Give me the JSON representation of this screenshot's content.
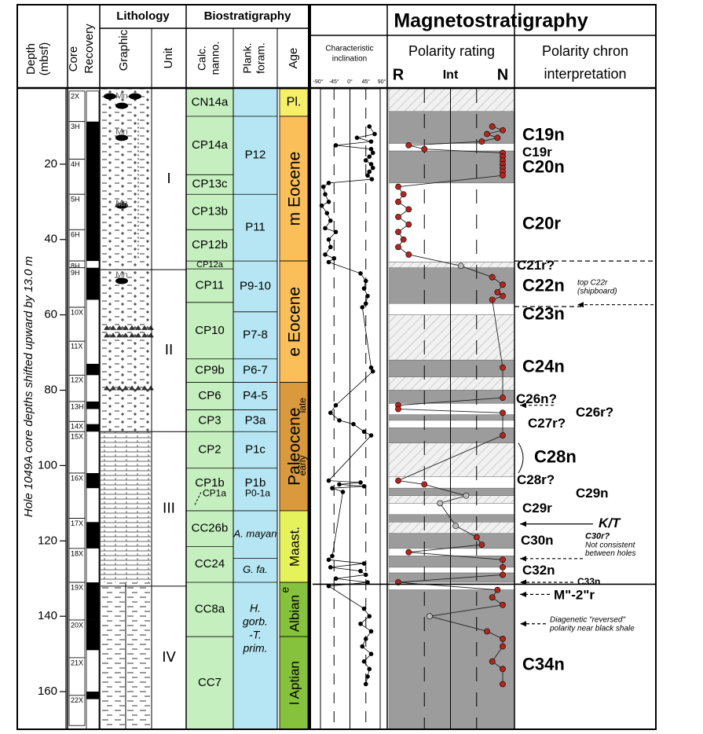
{
  "figure": {
    "side_label": "Hole 1049A core depths shifted upward by 13.0 m",
    "headers": {
      "depth_1": "Depth",
      "depth_2": "(mbsf)",
      "core": "Core",
      "recovery": "Recovery",
      "lithology": "Lithology",
      "graphic": "Graphic",
      "unit": "Unit",
      "biostratigraphy": "Biostratigraphy",
      "calc_1": "Calc.",
      "calc_2": "nanno.",
      "plank_1": "Plank.",
      "plank_2": "foram.",
      "age": "Age",
      "magnetostratigraphy": "Magnetostratigraphy",
      "incl_1": "Characteristic",
      "incl_2": "inclination",
      "polarity_rating": "Polarity rating",
      "chron_1": "Polarity chron",
      "chron_2": "interpretation"
    },
    "depth_ticks": [
      20,
      40,
      60,
      80,
      100,
      120,
      140,
      160
    ],
    "depth_range": [
      0,
      170
    ],
    "inclination_ticks": [
      {
        "value": -90,
        "label": "-90°"
      },
      {
        "value": -45,
        "label": "-45°"
      },
      {
        "value": 0,
        "label": "0°"
      },
      {
        "value": 45,
        "label": "45°"
      },
      {
        "value": 90,
        "label": "90°"
      }
    ],
    "rating_ticks": [
      {
        "value": -1,
        "label": "R"
      },
      {
        "value": 0,
        "label": "Int"
      },
      {
        "value": 1,
        "label": "N"
      }
    ],
    "cores": [
      {
        "label": "2X",
        "top": 0.6,
        "bottom": 8.7
      },
      {
        "label": "3H",
        "top": 8.7,
        "bottom": 18.7
      },
      {
        "label": "4H",
        "top": 18.7,
        "bottom": 28
      },
      {
        "label": "5H",
        "top": 28,
        "bottom": 37.4
      },
      {
        "label": "6H",
        "top": 37.4,
        "bottom": 45.7
      },
      {
        "label": "8H",
        "top": 45.7,
        "bottom": 47.5
      },
      {
        "label": "9H",
        "top": 47.5,
        "bottom": 58
      },
      {
        "label": "10X",
        "top": 58,
        "bottom": 67
      },
      {
        "label": "11X",
        "top": 67,
        "bottom": 76
      },
      {
        "label": "12X",
        "top": 76,
        "bottom": 83
      },
      {
        "label": "13H",
        "top": 83,
        "bottom": 88.3
      },
      {
        "label": "14X",
        "top": 88.3,
        "bottom": 91
      },
      {
        "label": "15X",
        "top": 91,
        "bottom": 102
      },
      {
        "label": "16X",
        "top": 102,
        "bottom": 114
      },
      {
        "label": "17X",
        "top": 114,
        "bottom": 122
      },
      {
        "label": "18X",
        "top": 122,
        "bottom": 131
      },
      {
        "label": "19X",
        "top": 131,
        "bottom": 141
      },
      {
        "label": "20X",
        "top": 141,
        "bottom": 151
      },
      {
        "label": "21X",
        "top": 151,
        "bottom": 161
      },
      {
        "label": "22X",
        "top": 161,
        "bottom": 169
      }
    ],
    "recovered": [
      [
        8.7,
        45.7
      ],
      [
        47.5,
        56
      ],
      [
        73,
        76
      ],
      [
        83,
        85
      ],
      [
        89,
        91
      ],
      [
        102,
        106
      ],
      [
        115,
        122
      ],
      [
        131,
        141
      ],
      [
        141,
        149
      ],
      [
        160,
        162
      ]
    ],
    "units": [
      {
        "label": "I",
        "top": 0,
        "bottom": 48
      },
      {
        "label": "II",
        "top": 48,
        "bottom": 91
      },
      {
        "label": "III",
        "top": 91,
        "bottom": 132
      },
      {
        "label": "IV",
        "top": 132,
        "bottom": 170
      }
    ],
    "mn_labels": [
      {
        "label": "Mn",
        "depth": 2
      },
      {
        "label": "Mn",
        "depth": 11.5
      },
      {
        "label": "Mn",
        "depth": 30.5
      },
      {
        "label": "Mn",
        "depth": 49.5
      }
    ],
    "nanno_zones": [
      {
        "label": "CN14a",
        "top": 0,
        "bottom": 7.3
      },
      {
        "label": "CP14a",
        "top": 7.3,
        "bottom": 22.8
      },
      {
        "label": "CP13c",
        "top": 22.8,
        "bottom": 28
      },
      {
        "label": "CP13b",
        "top": 28,
        "bottom": 37.4
      },
      {
        "label": "CP12b",
        "top": 37.4,
        "bottom": 45.7
      },
      {
        "label": "CP12a",
        "top": 45.7,
        "bottom": 47.8
      },
      {
        "label": "CP11",
        "top": 47.8,
        "bottom": 56.7
      },
      {
        "label": "CP10",
        "top": 56.7,
        "bottom": 71.7
      },
      {
        "label": "CP9b",
        "top": 71.7,
        "bottom": 77.9
      },
      {
        "label": "CP6",
        "top": 77.9,
        "bottom": 85.2
      },
      {
        "label": "CP3",
        "top": 85.2,
        "bottom": 91
      },
      {
        "label": "CP2",
        "top": 91,
        "bottom": 100.7
      },
      {
        "label": "CP1b",
        "top": 100.7,
        "bottom": 112
      },
      {
        "label": "CC26b",
        "top": 112,
        "bottom": 121.5
      },
      {
        "label": "CC24",
        "top": 121.5,
        "bottom": 131
      },
      {
        "label": "CC8a",
        "top": 131,
        "bottom": 145.4
      },
      {
        "label": "CC7",
        "top": 145.4,
        "bottom": 170
      }
    ],
    "nanno_sublabel": {
      "label": "CP1a",
      "depth": 107.5
    },
    "foram_zones": [
      {
        "label": "P12",
        "top": 7.3,
        "bottom": 28
      },
      {
        "label": "P11",
        "top": 28,
        "bottom": 45.7
      },
      {
        "label": "P9-10",
        "top": 45.7,
        "bottom": 59.2
      },
      {
        "label": "P7-8",
        "top": 59.2,
        "bottom": 71.7
      },
      {
        "label": "P6-7",
        "top": 71.7,
        "bottom": 77.9
      },
      {
        "label": "P4-5",
        "top": 77.9,
        "bottom": 85.2
      },
      {
        "label": "P3a",
        "top": 85.2,
        "bottom": 91
      },
      {
        "label": "P1c",
        "top": 91,
        "bottom": 100.7
      },
      {
        "label": "P1b",
        "top": 100.7,
        "bottom": 112
      },
      {
        "label": "A. mayan",
        "top": 112,
        "bottom": 124.6
      },
      {
        "label": "G. fa.",
        "top": 124.6,
        "bottom": 131
      }
    ],
    "foram_sublabel": {
      "label": "P0-1a",
      "depth": 107.5
    },
    "foram_bottom_lines": [
      "H.",
      "gorb.",
      "-T.",
      "prim."
    ],
    "ages": [
      {
        "label": "Pl.",
        "top": 0,
        "bottom": 7.3,
        "color": "#f6ef6a"
      },
      {
        "label": "m Eocene",
        "top": 7.3,
        "bottom": 45.7,
        "color": "#fbbf5a"
      },
      {
        "label": "e Eocene",
        "top": 45.7,
        "bottom": 77.9,
        "color": "#fbbf5a"
      },
      {
        "label": "Paleocene",
        "top": 77.9,
        "bottom": 112,
        "color": "#d9993c"
      },
      {
        "label": "Maast.",
        "top": 112,
        "bottom": 131,
        "color": "#e6f25c"
      },
      {
        "label": "Albian",
        "top": 131,
        "bottom": 145.4,
        "color": "#86c23c"
      },
      {
        "label": "l Aptian",
        "top": 145.4,
        "bottom": 170,
        "color": "#86c23c"
      }
    ],
    "age_sublabels": [
      {
        "label": "late",
        "depth": 84
      },
      {
        "label": "early",
        "depth": 100
      },
      {
        "label": "e",
        "depth": 133
      }
    ],
    "inclination_points": [
      [
        10,
        55
      ],
      [
        12,
        70
      ],
      [
        13,
        20
      ],
      [
        14,
        60
      ],
      [
        15,
        -40
      ],
      [
        16,
        60
      ],
      [
        17,
        65
      ],
      [
        18,
        55
      ],
      [
        19,
        45
      ],
      [
        20,
        60
      ],
      [
        21,
        65
      ],
      [
        22,
        55
      ],
      [
        23,
        50
      ],
      [
        24,
        62
      ],
      [
        25,
        -60
      ],
      [
        26,
        -75
      ],
      [
        28,
        -70
      ],
      [
        30,
        -60
      ],
      [
        31,
        -80
      ],
      [
        33,
        -65
      ],
      [
        35,
        -55
      ],
      [
        37,
        -70
      ],
      [
        38,
        -40
      ],
      [
        40,
        -60
      ],
      [
        42,
        -55
      ],
      [
        44,
        -70
      ],
      [
        45,
        -45
      ],
      [
        46,
        -60
      ],
      [
        49,
        30
      ],
      [
        51,
        45
      ],
      [
        53,
        40
      ],
      [
        55,
        50
      ],
      [
        57,
        45
      ],
      [
        58,
        35
      ],
      [
        74,
        60
      ],
      [
        75,
        65
      ],
      [
        84,
        -40
      ],
      [
        86,
        -55
      ],
      [
        88,
        -30
      ],
      [
        89,
        10
      ],
      [
        91,
        40
      ],
      [
        92,
        60
      ],
      [
        104,
        -60
      ],
      [
        104.5,
        30
      ],
      [
        105,
        -30
      ],
      [
        105.5,
        40
      ],
      [
        106,
        -50
      ],
      [
        107,
        -20
      ],
      [
        124,
        -50
      ],
      [
        125,
        -60
      ],
      [
        126,
        40
      ],
      [
        127,
        -55
      ],
      [
        128,
        30
      ],
      [
        129,
        45
      ],
      [
        130,
        -40
      ],
      [
        131,
        50
      ],
      [
        132,
        -60
      ],
      [
        138,
        40
      ],
      [
        140,
        55
      ],
      [
        142,
        30
      ],
      [
        144,
        60
      ],
      [
        146,
        45
      ],
      [
        148,
        35
      ],
      [
        150,
        60
      ],
      [
        152,
        40
      ],
      [
        154,
        55
      ],
      [
        156,
        50
      ],
      [
        158,
        45
      ]
    ],
    "polarity_zones": [
      {
        "top": 0,
        "bottom": 6,
        "kind": "hatched"
      },
      {
        "top": 6,
        "bottom": 14.5,
        "kind": "gray"
      },
      {
        "top": 14.5,
        "bottom": 16.5,
        "kind": "white"
      },
      {
        "top": 16.5,
        "bottom": 25,
        "kind": "gray"
      },
      {
        "top": 25,
        "bottom": 46,
        "kind": "white"
      },
      {
        "top": 46,
        "bottom": 47.5,
        "kind": "hatched"
      },
      {
        "top": 47.5,
        "bottom": 57,
        "kind": "gray"
      },
      {
        "top": 57,
        "bottom": 60,
        "kind": "white"
      },
      {
        "top": 60,
        "bottom": 72,
        "kind": "hatched"
      },
      {
        "top": 72,
        "bottom": 76.5,
        "kind": "gray"
      },
      {
        "top": 76.5,
        "bottom": 80,
        "kind": "hatched"
      },
      {
        "top": 80,
        "bottom": 83.5,
        "kind": "gray"
      },
      {
        "top": 83.5,
        "bottom": 86.5,
        "kind": "white"
      },
      {
        "top": 86.5,
        "bottom": 88,
        "kind": "gray"
      },
      {
        "top": 88,
        "bottom": 90,
        "kind": "white"
      },
      {
        "top": 90,
        "bottom": 94,
        "kind": "gray"
      },
      {
        "top": 94,
        "bottom": 103,
        "kind": "hatched"
      },
      {
        "top": 103,
        "bottom": 106,
        "kind": "white"
      },
      {
        "top": 106,
        "bottom": 108,
        "kind": "gray"
      },
      {
        "top": 108,
        "bottom": 110,
        "kind": "hatched"
      },
      {
        "top": 110,
        "bottom": 113,
        "kind": "white"
      },
      {
        "top": 113,
        "bottom": 115,
        "kind": "gray"
      },
      {
        "top": 115,
        "bottom": 118,
        "kind": "hatched"
      },
      {
        "top": 118,
        "bottom": 122,
        "kind": "gray"
      },
      {
        "top": 122,
        "bottom": 124,
        "kind": "white"
      },
      {
        "top": 124,
        "bottom": 127,
        "kind": "gray"
      },
      {
        "top": 127,
        "bottom": 128.5,
        "kind": "white"
      },
      {
        "top": 128.5,
        "bottom": 131,
        "kind": "gray"
      },
      {
        "top": 131,
        "bottom": 133,
        "kind": "white"
      },
      {
        "top": 133,
        "bottom": 170,
        "kind": "gray"
      }
    ],
    "rating_points": [
      [
        10,
        0.8
      ],
      [
        11,
        1
      ],
      [
        12,
        0.7
      ],
      [
        13,
        0.9
      ],
      [
        14,
        0.6
      ],
      [
        15,
        -0.8
      ],
      [
        16,
        -0.5
      ],
      [
        17,
        1
      ],
      [
        18,
        1
      ],
      [
        19,
        1
      ],
      [
        20,
        1
      ],
      [
        21,
        1
      ],
      [
        22,
        1
      ],
      [
        23,
        1
      ],
      [
        26,
        -1
      ],
      [
        28,
        -0.9
      ],
      [
        30,
        -1
      ],
      [
        32,
        -0.8
      ],
      [
        34,
        -1
      ],
      [
        36,
        -0.8
      ],
      [
        38,
        -1
      ],
      [
        40,
        -0.9
      ],
      [
        42,
        -1
      ],
      [
        44,
        -0.8
      ],
      [
        47,
        0.2
      ],
      [
        50,
        0.8
      ],
      [
        52,
        1
      ],
      [
        54,
        0.9
      ],
      [
        55,
        1
      ],
      [
        56,
        0.8
      ],
      [
        74,
        1
      ],
      [
        82,
        1
      ],
      [
        84,
        -1
      ],
      [
        85,
        -1
      ],
      [
        86,
        1
      ],
      [
        92,
        1
      ],
      [
        104,
        -1
      ],
      [
        105,
        -0.5
      ],
      [
        108,
        0.3
      ],
      [
        110,
        -0.2
      ],
      [
        116,
        0.1
      ],
      [
        119,
        0.5
      ],
      [
        121,
        0.6
      ],
      [
        123,
        -0.8
      ],
      [
        125,
        1
      ],
      [
        127,
        1
      ],
      [
        129,
        1
      ],
      [
        131,
        -1
      ],
      [
        133,
        0.9
      ],
      [
        135,
        0.8
      ],
      [
        137,
        1
      ],
      [
        140,
        -0.4
      ],
      [
        144,
        0.7
      ],
      [
        146,
        1
      ],
      [
        148,
        1
      ],
      [
        152,
        0.8
      ],
      [
        154,
        1
      ],
      [
        158,
        1
      ]
    ],
    "chrons": [
      {
        "label": "C19n",
        "depth": 12.5,
        "style": "big"
      },
      {
        "label": "C19r",
        "depth": 17,
        "style": "mid"
      },
      {
        "label": "C20n",
        "depth": 21,
        "style": "big"
      },
      {
        "label": "C20r",
        "depth": 36,
        "style": "big"
      },
      {
        "label": "C21r?",
        "depth": 47,
        "style": "mid"
      },
      {
        "label": "C22n",
        "depth": 52.5,
        "style": "big"
      },
      {
        "label": "top C22r",
        "depth": 51.5,
        "style": "note"
      },
      {
        "label": "(shipboard)",
        "depth": 53.8,
        "style": "note"
      },
      {
        "label": "C23n",
        "depth": 60,
        "style": "big"
      },
      {
        "label": "C24n",
        "depth": 74,
        "style": "big"
      },
      {
        "label": "C26n?",
        "depth": 82.5,
        "style": "mid"
      },
      {
        "label": "C26r?",
        "depth": 86,
        "style": "mid"
      },
      {
        "label": "C27r?",
        "depth": 89,
        "style": "mid"
      },
      {
        "label": "C28n",
        "depth": 98,
        "style": "big"
      },
      {
        "label": "C28r?",
        "depth": 104,
        "style": "mid"
      },
      {
        "label": "C29n",
        "depth": 107.5,
        "style": "mid"
      },
      {
        "label": "C29r",
        "depth": 111.5,
        "style": "mid"
      },
      {
        "label": "K/T",
        "depth": 115.5,
        "style": "kt"
      },
      {
        "label": "C30n",
        "depth": 120,
        "style": "mid"
      },
      {
        "label": "C30r?",
        "depth": 118.8,
        "style": "notebold"
      },
      {
        "label": "Not consistent",
        "depth": 121.2,
        "style": "note"
      },
      {
        "label": "between holes",
        "depth": 123.4,
        "style": "note"
      },
      {
        "label": "C32n",
        "depth": 128,
        "style": "mid"
      },
      {
        "label": "C33n",
        "depth": 131,
        "style": "small"
      },
      {
        "label": "M\"-2\"r",
        "depth": 134.5,
        "style": "mid"
      },
      {
        "label": "Diagenetic \"reversed\"",
        "depth": 141,
        "style": "note"
      },
      {
        "label": "polarity near black shale",
        "depth": 143.3,
        "style": "note"
      },
      {
        "label": "C34n",
        "depth": 153,
        "style": "big"
      }
    ]
  }
}
